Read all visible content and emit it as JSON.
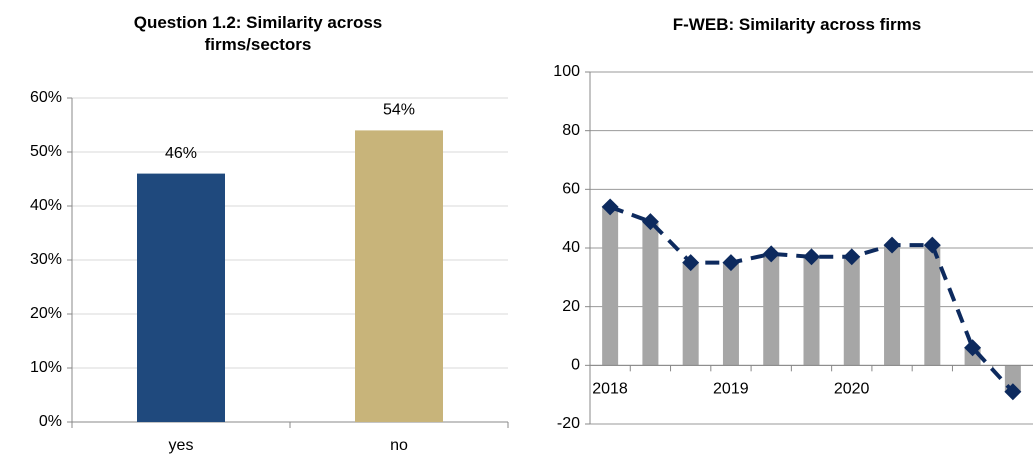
{
  "chart_data": [
    {
      "type": "bar",
      "title": "Question 1.2: Similarity across firms/sectors",
      "categories": [
        "yes",
        "no"
      ],
      "values": [
        46,
        54
      ],
      "value_labels": [
        "46%",
        "54%"
      ],
      "colors": [
        "#1f497d",
        "#c8b47a"
      ],
      "ylim": [
        0,
        60
      ],
      "yticks": [
        {
          "value": 0,
          "label": "0%"
        },
        {
          "value": 10,
          "label": "10%"
        },
        {
          "value": 20,
          "label": "20%"
        },
        {
          "value": 30,
          "label": "30%"
        },
        {
          "value": 40,
          "label": "40%"
        },
        {
          "value": 50,
          "label": "50%"
        },
        {
          "value": 60,
          "label": "60%"
        }
      ],
      "grid": true
    },
    {
      "type": "bar-line",
      "title": "F-WEB: Similarity across firms",
      "categories": [
        "2018",
        null,
        null,
        "2019",
        null,
        null,
        "2020",
        null,
        null,
        null,
        null
      ],
      "series": [
        {
          "kind": "bar",
          "color": "#a6a6a6",
          "values": [
            54,
            49,
            35,
            35,
            38,
            37,
            37,
            41,
            41,
            6,
            -9
          ]
        },
        {
          "kind": "line",
          "color": "#0d2a5e",
          "values": [
            54,
            49,
            35,
            35,
            38,
            37,
            37,
            41,
            41,
            6,
            -9
          ]
        }
      ],
      "ylim": [
        -20,
        100
      ],
      "yticks": [
        -20,
        0,
        20,
        40,
        60,
        80,
        100
      ],
      "grid": true
    }
  ]
}
